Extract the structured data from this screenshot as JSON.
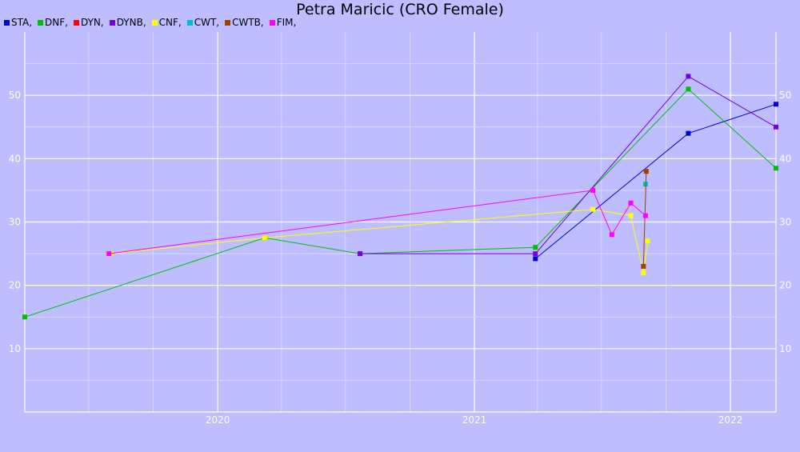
{
  "chart_data": {
    "type": "line",
    "title": "Petra Maricic (CRO Female)",
    "xlabel": "",
    "ylabel": "",
    "x_ticks": [
      "2020",
      "2021",
      "2022"
    ],
    "y_ticks": [
      10,
      20,
      30,
      40,
      50
    ],
    "xlim": [
      "2019-04-01",
      "2022-03-07"
    ],
    "ylim": [
      0,
      60
    ],
    "grid": true,
    "legend_position": "top-left",
    "series": [
      {
        "name": "STA",
        "color": "#0000e0",
        "points": [
          {
            "x": "2021-03-29",
            "y": 24.2
          },
          {
            "x": "2021-11-02",
            "y": 44
          },
          {
            "x": "2022-03-07",
            "y": 48.6
          }
        ]
      },
      {
        "name": "DNF",
        "color": "#00c000",
        "points": [
          {
            "x": "2019-04-01",
            "y": 15
          },
          {
            "x": "2020-03-08",
            "y": 27.5
          },
          {
            "x": "2020-07-22",
            "y": 25
          },
          {
            "x": "2021-03-29",
            "y": 26
          },
          {
            "x": "2021-11-02",
            "y": 51
          },
          {
            "x": "2022-03-07",
            "y": 38.5
          }
        ]
      },
      {
        "name": "DYN",
        "color": "#ff0000",
        "points": []
      },
      {
        "name": "DYNB",
        "color": "#7700e0",
        "points": [
          {
            "x": "2020-07-22",
            "y": 25
          },
          {
            "x": "2021-03-29",
            "y": 25
          },
          {
            "x": "2021-11-02",
            "y": 53
          },
          {
            "x": "2022-03-07",
            "y": 45
          }
        ]
      },
      {
        "name": "CNF",
        "color": "#ffff00",
        "points": [
          {
            "x": "2019-08-02",
            "y": 25
          },
          {
            "x": "2020-03-08",
            "y": 27.5
          },
          {
            "x": "2021-06-19",
            "y": 32
          },
          {
            "x": "2021-08-12",
            "y": 31
          },
          {
            "x": "2021-08-30",
            "y": 22
          },
          {
            "x": "2021-09-05",
            "y": 27
          }
        ]
      },
      {
        "name": "CWT",
        "color": "#00c0d0",
        "points": [
          {
            "x": "2021-09-02",
            "y": 36
          }
        ]
      },
      {
        "name": "CWTB",
        "color": "#a04000",
        "points": [
          {
            "x": "2021-08-30",
            "y": 23
          },
          {
            "x": "2021-09-03",
            "y": 38
          }
        ]
      },
      {
        "name": "FIM",
        "color": "#ff00ff",
        "points": [
          {
            "x": "2019-07-30",
            "y": 25
          },
          {
            "x": "2021-06-19",
            "y": 35
          },
          {
            "x": "2021-07-16",
            "y": 28
          },
          {
            "x": "2021-08-12",
            "y": 33
          },
          {
            "x": "2021-09-02",
            "y": 31
          }
        ]
      }
    ]
  }
}
